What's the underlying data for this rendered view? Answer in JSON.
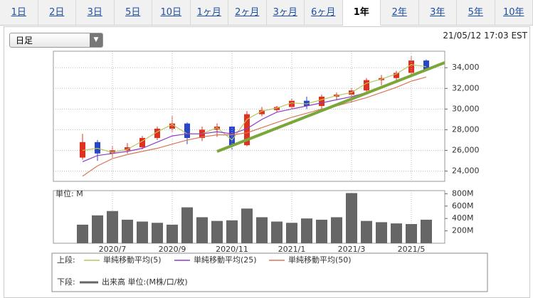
{
  "tabs": [
    "1日",
    "2日",
    "3日",
    "5日",
    "10日",
    "1ヶ月",
    "2ヶ月",
    "3ヶ月",
    "6ヶ月",
    "1年",
    "2年",
    "3年",
    "5年",
    "10年"
  ],
  "selected_tab": 9,
  "dropdown": "日足",
  "timestamp": "21/05/12 17:03 EST",
  "chart_data": [
    {
      "type": "candlestick",
      "up_color": "#e0301e",
      "down_color": "#2a46c8",
      "open": [
        25300,
        26800,
        25700,
        26000,
        26300,
        27200,
        28100,
        28600,
        27200,
        28000,
        28300,
        26500,
        29500,
        29900,
        30200,
        30800,
        30300,
        31200,
        31400,
        31800,
        32800,
        33000,
        33500,
        34700
      ],
      "high": [
        27600,
        27000,
        26400,
        26700,
        27400,
        28300,
        29300,
        28700,
        28300,
        28600,
        28400,
        29800,
        30200,
        30300,
        31000,
        31200,
        31400,
        31600,
        32000,
        33000,
        33300,
        33700,
        35100,
        34800
      ],
      "low": [
        25100,
        25000,
        25300,
        25700,
        26100,
        27000,
        27800,
        26600,
        26900,
        27300,
        26100,
        26400,
        29300,
        29700,
        30000,
        30000,
        29900,
        30900,
        30600,
        31600,
        32300,
        32700,
        33300,
        33800
      ],
      "close": [
        26800,
        25700,
        26000,
        26300,
        27200,
        28100,
        28600,
        27200,
        28000,
        28300,
        26500,
        29500,
        29900,
        30200,
        30800,
        30300,
        31200,
        31400,
        31800,
        32800,
        33000,
        33500,
        34700,
        33800
      ],
      "legend_prefix": "上段:",
      "series": [
        {
          "name": "単純移動平均(5)",
          "color": "#b7c75a",
          "values": [
            26000,
            26200,
            25800,
            26100,
            26900,
            27800,
            28500,
            27600,
            27600,
            28200,
            27000,
            29000,
            29800,
            30100,
            30600,
            30500,
            30900,
            31300,
            31600,
            32500,
            32900,
            33400,
            34300,
            34100
          ]
        },
        {
          "name": "単純移動平均(25)",
          "color": "#8a3fc4",
          "values": [
            24900,
            25500,
            25700,
            25900,
            26200,
            26800,
            27400,
            27600,
            27600,
            27800,
            27600,
            28100,
            29000,
            29700,
            30000,
            30300,
            30600,
            30900,
            31200,
            31600,
            32200,
            32700,
            33300,
            33700
          ]
        },
        {
          "name": "単純移動平均(50)",
          "color": "#d9765a",
          "values": [
            23500,
            24500,
            25200,
            25600,
            25900,
            26200,
            26600,
            27000,
            27300,
            27500,
            27500,
            27700,
            28200,
            28700,
            29200,
            29600,
            30000,
            30300,
            30700,
            31100,
            31600,
            32100,
            32700,
            33100
          ]
        }
      ],
      "ylim": [
        23000,
        35600
      ],
      "yticks": [
        {
          "value": 24000,
          "label": "24,000"
        },
        {
          "value": 26000,
          "label": "26,000"
        },
        {
          "value": 28000,
          "label": "28,000"
        },
        {
          "value": 30000,
          "label": "30,000"
        },
        {
          "value": 32000,
          "label": "32,000"
        },
        {
          "value": 34000,
          "label": "34,000"
        }
      ],
      "grid": true
    },
    {
      "type": "bar",
      "unit_label": "単位: M",
      "legend_prefix": "下段:",
      "categories": [
        null,
        null,
        "2020/7",
        null,
        null,
        null,
        "2020/9",
        null,
        null,
        null,
        "2020/11",
        null,
        null,
        null,
        "2021/1",
        null,
        null,
        null,
        "2021/3",
        null,
        null,
        null,
        "2021/5",
        null
      ],
      "series": [
        {
          "name": "出来高 単位:(M株/口/枚)",
          "color": "#666666",
          "values": [
            300,
            450,
            520,
            380,
            350,
            330,
            300,
            580,
            420,
            360,
            370,
            560,
            420,
            350,
            330,
            400,
            380,
            420,
            810,
            360,
            340,
            320,
            310,
            380
          ]
        }
      ],
      "ylim": [
        0,
        850
      ],
      "yticks": [
        {
          "value": 200,
          "label": "200M"
        },
        {
          "value": 400,
          "label": "400M"
        },
        {
          "value": 600,
          "label": "600M"
        },
        {
          "value": 800,
          "label": "800M"
        }
      ]
    }
  ]
}
